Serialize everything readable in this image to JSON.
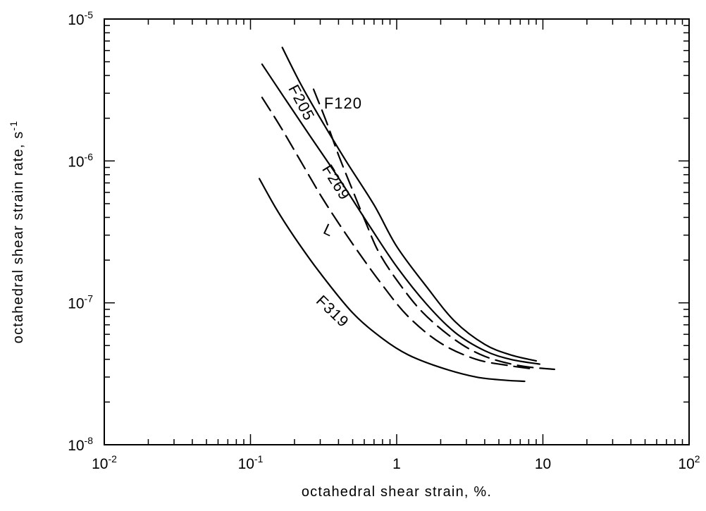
{
  "chart_data": {
    "type": "line",
    "title": "",
    "xlabel": "octahedral shear strain, %.",
    "ylabel": "octahedral shear strain rate, s",
    "ylabel_superscript": "-1",
    "xscale": "log",
    "yscale": "log",
    "xlim": [
      0.01,
      100
    ],
    "ylim": [
      1e-08,
      1e-05
    ],
    "grid": false,
    "legend": "none",
    "x_tick_labels": [
      {
        "value": 0.01,
        "base": "10",
        "exp": "-2"
      },
      {
        "value": 0.1,
        "base": "10",
        "exp": "-1"
      },
      {
        "value": 1,
        "base": "1",
        "exp": ""
      },
      {
        "value": 10,
        "base": "10",
        "exp": ""
      },
      {
        "value": 100,
        "base": "10",
        "exp": "2"
      }
    ],
    "y_tick_labels": [
      {
        "value": 1e-05,
        "base": "10",
        "exp": "-5"
      },
      {
        "value": 1e-06,
        "base": "10",
        "exp": "-6"
      },
      {
        "value": 1e-07,
        "base": "10",
        "exp": "-7"
      },
      {
        "value": 1e-08,
        "base": "10",
        "exp": "-8"
      }
    ],
    "series": [
      {
        "name": "F120",
        "style": "solid",
        "points": [
          [
            0.165,
            6.3e-06
          ],
          [
            0.22,
            3.5e-06
          ],
          [
            0.3,
            2e-06
          ],
          [
            0.45,
            1e-06
          ],
          [
            0.7,
            4.9e-07
          ],
          [
            1.0,
            2.5e-07
          ],
          [
            1.6,
            1.3e-07
          ],
          [
            2.5,
            7.4e-08
          ],
          [
            4.0,
            5.1e-08
          ],
          [
            6.0,
            4.3e-08
          ],
          [
            9.0,
            3.9e-08
          ]
        ]
      },
      {
        "name": "",
        "style": "dashed",
        "points": [
          [
            0.27,
            3.2e-06
          ],
          [
            0.33,
            1.9e-06
          ],
          [
            0.4,
            1.1e-06
          ],
          [
            0.5,
            6.2e-07
          ],
          [
            0.62,
            3.6e-07
          ],
          [
            0.75,
            2.3e-07
          ],
          [
            1.0,
            1.45e-07
          ],
          [
            1.5,
            8.6e-08
          ],
          [
            2.5,
            5.5e-08
          ],
          [
            4.0,
            4.2e-08
          ],
          [
            7.0,
            3.6e-08
          ],
          [
            12.0,
            3.4e-08
          ]
        ]
      },
      {
        "name": "F205",
        "style": "solid",
        "points": [
          [
            0.12,
            4.8e-06
          ],
          [
            0.17,
            2.8e-06
          ],
          [
            0.25,
            1.55e-06
          ],
          [
            0.4,
            7.6e-07
          ],
          [
            0.65,
            3.5e-07
          ],
          [
            1.0,
            1.8e-07
          ],
          [
            1.6,
            9.8e-08
          ],
          [
            2.5,
            6.2e-08
          ],
          [
            4.0,
            4.6e-08
          ],
          [
            6.0,
            4e-08
          ],
          [
            9.5,
            3.7e-08
          ]
        ]
      },
      {
        "name": "F269",
        "style": "dashed",
        "points": [
          [
            0.12,
            2.8e-06
          ],
          [
            0.16,
            1.75e-06
          ],
          [
            0.22,
            1e-06
          ],
          [
            0.32,
            5.2e-07
          ],
          [
            0.5,
            2.6e-07
          ],
          [
            0.8,
            1.33e-07
          ],
          [
            1.2,
            8e-08
          ],
          [
            2.0,
            5.2e-08
          ],
          [
            3.5,
            4e-08
          ],
          [
            6.0,
            3.6e-08
          ],
          [
            9.0,
            3.4e-08
          ]
        ]
      },
      {
        "name": "F319",
        "style": "solid",
        "points": [
          [
            0.115,
            7.5e-07
          ],
          [
            0.15,
            4.6e-07
          ],
          [
            0.2,
            2.9e-07
          ],
          [
            0.3,
            1.62e-07
          ],
          [
            0.5,
            8.5e-08
          ],
          [
            0.8,
            5.6e-08
          ],
          [
            1.2,
            4.3e-08
          ],
          [
            2.0,
            3.5e-08
          ],
          [
            3.5,
            3e-08
          ],
          [
            5.5,
            2.85e-08
          ],
          [
            7.5,
            2.8e-08
          ]
        ]
      }
    ],
    "annotations": [
      {
        "text": "F120",
        "x": 0.43,
        "y": 2.5e-06,
        "rotation": 0
      },
      {
        "text": "F205",
        "x": 0.22,
        "y": 2.55e-06,
        "rotation": 62
      },
      {
        "text": "F269",
        "x": 0.38,
        "y": 7e-07,
        "rotation": 58
      },
      {
        "text": "L",
        "x": 0.34,
        "y": 3.2e-07,
        "rotation": 25
      },
      {
        "text": "F319",
        "x": 0.36,
        "y": 8.6e-08,
        "rotation": 44
      }
    ]
  }
}
